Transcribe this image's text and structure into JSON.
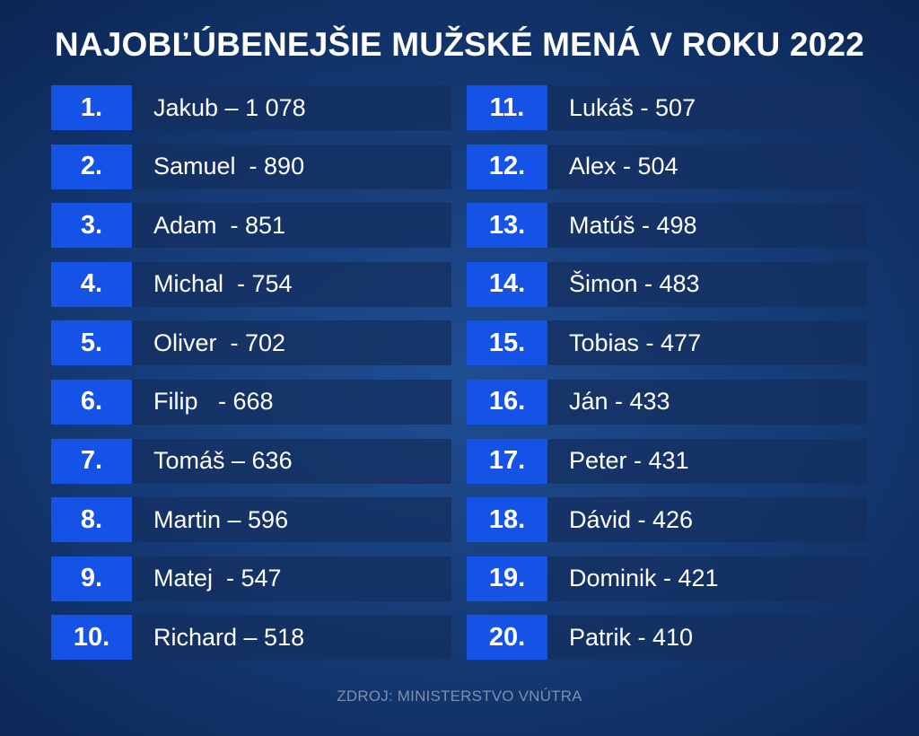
{
  "title": "NAJOBĽÚBENEJŠIE MUŽSKÉ MENÁ V ROKU 2022",
  "left_column": [
    {
      "rank": "1.",
      "entry": "Jakub – 1 078"
    },
    {
      "rank": "2.",
      "entry": "Samuel  - 890"
    },
    {
      "rank": "3.",
      "entry": "Adam  - 851"
    },
    {
      "rank": "4.",
      "entry": "Michal  - 754"
    },
    {
      "rank": "5.",
      "entry": "Oliver  - 702"
    },
    {
      "rank": "6.",
      "entry": "Filip   - 668"
    },
    {
      "rank": "7.",
      "entry": "Tomáš – 636"
    },
    {
      "rank": "8.",
      "entry": "Martin – 596"
    },
    {
      "rank": "9.",
      "entry": "Matej  - 547"
    },
    {
      "rank": "10.",
      "entry": "Richard – 518"
    }
  ],
  "right_column": [
    {
      "rank": "11.",
      "entry": "Lukáš - 507"
    },
    {
      "rank": "12.",
      "entry": "Alex - 504"
    },
    {
      "rank": "13.",
      "entry": "Matúš - 498"
    },
    {
      "rank": "14.",
      "entry": "Šimon - 483"
    },
    {
      "rank": "15.",
      "entry": "Tobias - 477"
    },
    {
      "rank": "16.",
      "entry": "Ján - 433"
    },
    {
      "rank": "17.",
      "entry": "Peter - 431"
    },
    {
      "rank": "18.",
      "entry": "Dávid - 426"
    },
    {
      "rank": "19.",
      "entry": "Dominik - 421"
    },
    {
      "rank": "20.",
      "entry": "Patrik - 410"
    }
  ],
  "source": "ZDROJ: MINISTERSTVO VNÚTRA",
  "colors": {
    "background": "#163c78",
    "rank_box": "#1553e6",
    "row_background": "#143060",
    "source_text": "#7e8fae"
  }
}
